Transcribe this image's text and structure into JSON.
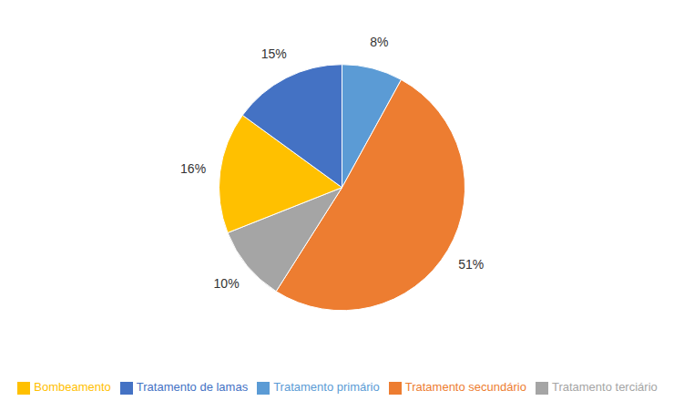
{
  "chart_data": {
    "type": "pie",
    "categories": [
      "Tratamento primário",
      "Tratamento secundário",
      "Tratamento terciário",
      "Bombeamento",
      "Tratamento de lamas"
    ],
    "values": [
      8,
      51,
      10,
      16,
      15
    ],
    "value_labels": [
      "8%",
      "51%",
      "10%",
      "16%",
      "15%"
    ],
    "colors": [
      "#5B9BD5",
      "#ED7D31",
      "#A5A5A5",
      "#FFC000",
      "#4472C4"
    ],
    "data_labels": true,
    "legend": "bottom"
  }
}
